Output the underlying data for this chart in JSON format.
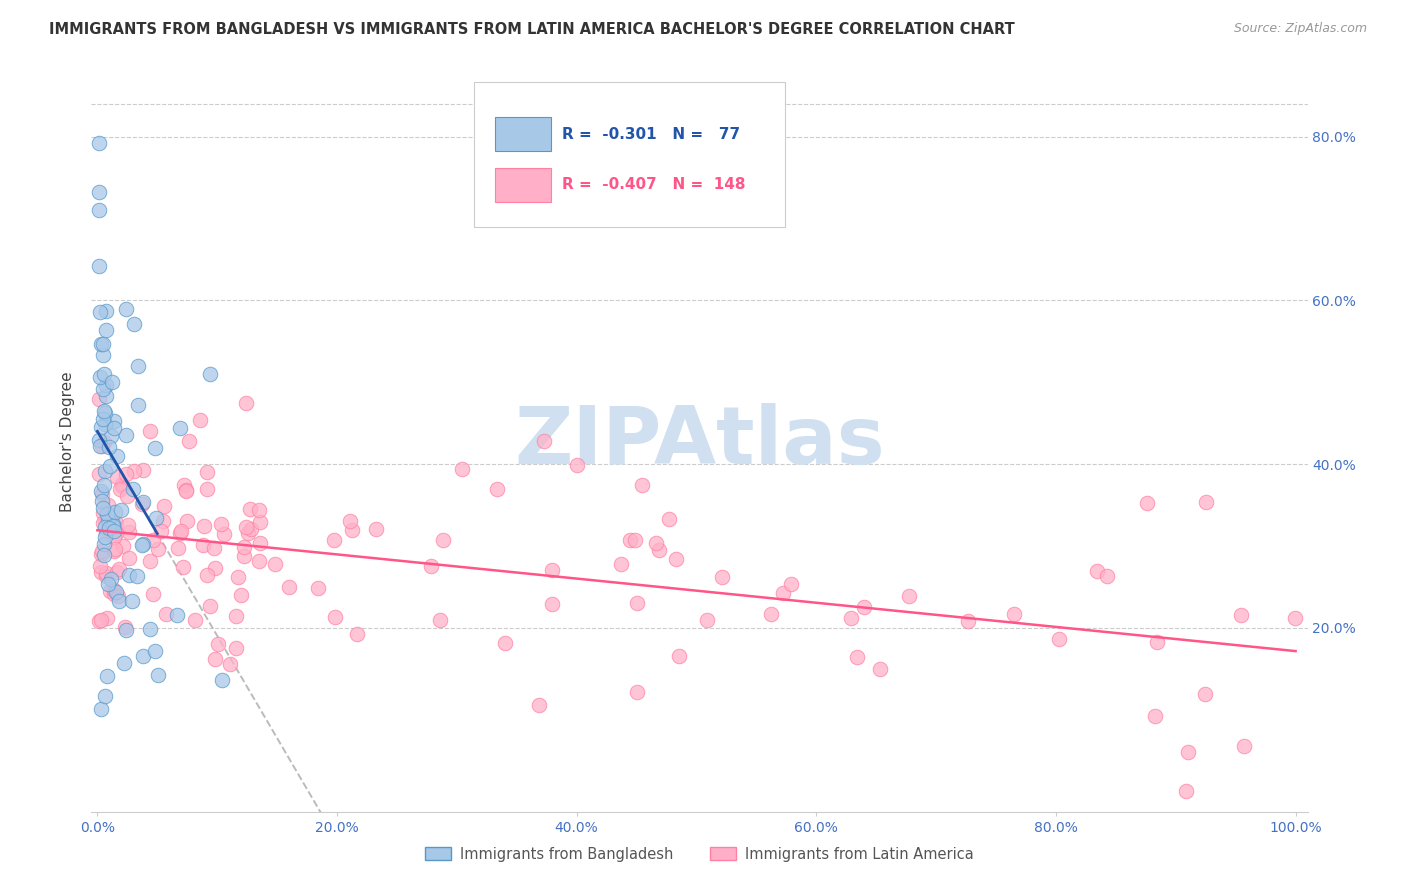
{
  "title": "IMMIGRANTS FROM BANGLADESH VS IMMIGRANTS FROM LATIN AMERICA BACHELOR'S DEGREE CORRELATION CHART",
  "source": "Source: ZipAtlas.com",
  "ylabel": "Bachelor's Degree",
  "legend_blue_rval": "-0.301",
  "legend_blue_nval": "77",
  "legend_pink_rval": "-0.407",
  "legend_pink_nval": "148",
  "legend_blue_label": "Immigrants from Bangladesh",
  "legend_pink_label": "Immigrants from Latin America",
  "blue_fill_color": "#a8c8e8",
  "blue_edge_color": "#5599cc",
  "pink_fill_color": "#ffb0c8",
  "pink_edge_color": "#ff80a0",
  "blue_line_color": "#2255aa",
  "pink_line_color": "#ff5588",
  "gray_dash_color": "#bbbbbb",
  "watermark_color": "#d0e0f0",
  "axis_tick_color": "#4472C4",
  "grid_color": "#cccccc",
  "background_color": "#ffffff",
  "title_color": "#333333",
  "source_color": "#999999"
}
